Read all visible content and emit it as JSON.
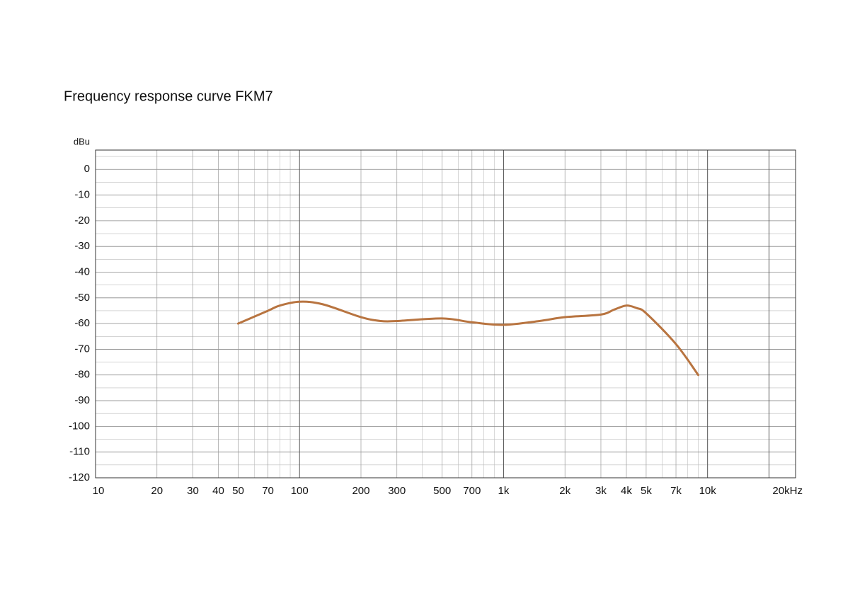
{
  "chart_data": {
    "type": "line",
    "title": "Frequency response curve FKM7",
    "y_label": "dBu",
    "log_x": true,
    "xlim": [
      10,
      27000
    ],
    "ylim": [
      -120,
      7.5
    ],
    "xticks": [
      10,
      20,
      30,
      40,
      50,
      70,
      100,
      200,
      300,
      500,
      700,
      {
        "value": 1000,
        "label": "1k"
      },
      {
        "value": 2000,
        "label": "2k"
      },
      {
        "value": 3000,
        "label": "3k"
      },
      {
        "value": 4000,
        "label": "4k"
      },
      {
        "value": 5000,
        "label": "5k"
      },
      {
        "value": 7000,
        "label": "7k"
      },
      {
        "value": 10000,
        "label": "10k"
      },
      {
        "value": 20000,
        "label": "20kHz"
      }
    ],
    "xminor": [
      60,
      80,
      90,
      400,
      600,
      800,
      900,
      6000,
      8000,
      9000
    ],
    "yticks": [
      0,
      -10,
      -20,
      -30,
      -40,
      -50,
      -60,
      -70,
      -80,
      -90,
      -100,
      -110,
      -120
    ],
    "yminor": [
      5,
      -5,
      -15,
      -25,
      -35,
      -45,
      -55,
      -65,
      -75,
      -85,
      -95,
      -105,
      -115
    ],
    "grid": true,
    "x": [
      50,
      70,
      80,
      100,
      130,
      200,
      250,
      300,
      500,
      700,
      1000,
      1500,
      2000,
      3000,
      3500,
      4000,
      4500,
      5000,
      7000,
      9000
    ],
    "series": [
      {
        "name": "FKM7",
        "color": "#b87440",
        "values": [
          -60,
          -55,
          -53,
          -51.5,
          -52.5,
          -57.5,
          -59,
          -59,
          -58,
          -59.5,
          -60.5,
          -59,
          -57.5,
          -56.5,
          -54.5,
          -53,
          -54,
          -56,
          -68,
          -80
        ]
      }
    ]
  }
}
